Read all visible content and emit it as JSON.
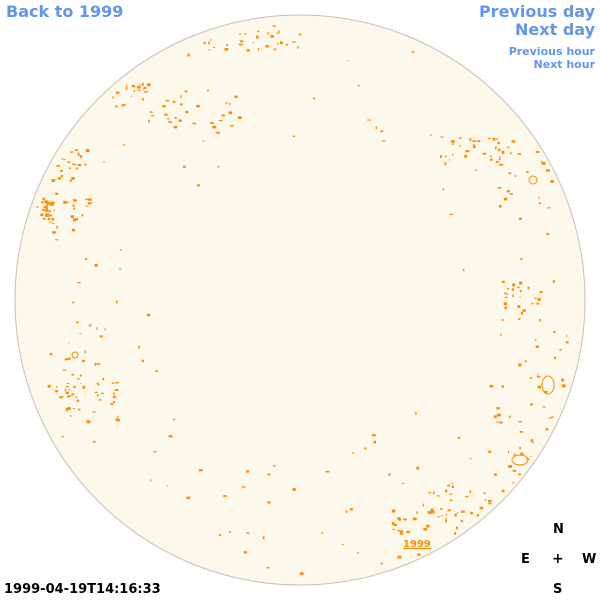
{
  "nav": {
    "back_label": "Back to 1999",
    "prev_day_label": "Previous day",
    "next_day_label": "Next day",
    "prev_hour_label": "Previous hour",
    "next_hour_label": "Next hour"
  },
  "compass": {
    "n": "N",
    "e": "E",
    "center": "+",
    "w": "W",
    "s": "S"
  },
  "timestamp": "1999-04-19T14:16:33",
  "year_link": "1999",
  "colors": {
    "disk_fill": "#fdf8ec",
    "disk_stroke": "#c8c0b0",
    "contour": "#ff8c00",
    "link": "#6495ed"
  }
}
